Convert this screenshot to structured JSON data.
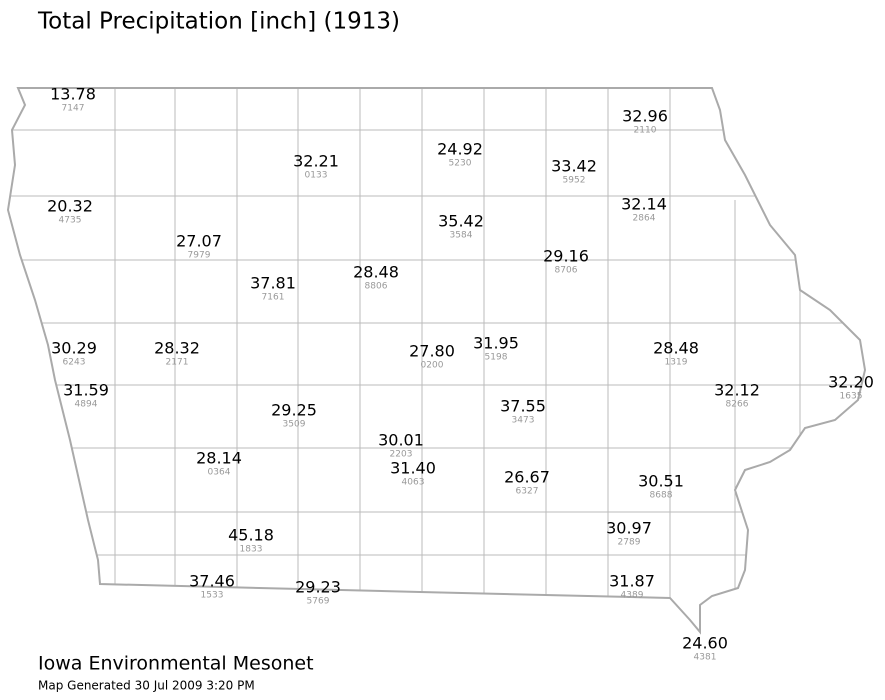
{
  "title": "Total Precipitation [inch] (1913)",
  "stations": [
    {
      "value": "13.78",
      "id": "7147"
    },
    {
      "value": "32.96",
      "id": "2110"
    },
    {
      "value": "32.21",
      "id": "0133"
    },
    {
      "value": "24.92",
      "id": "5230"
    },
    {
      "value": "33.42",
      "id": "5952"
    },
    {
      "value": "20.32",
      "id": "4735"
    },
    {
      "value": "32.14",
      "id": "2864"
    },
    {
      "value": "35.42",
      "id": "3584"
    },
    {
      "value": "27.07",
      "id": "7979"
    },
    {
      "value": "29.16",
      "id": "8706"
    },
    {
      "value": "37.81",
      "id": "7161"
    },
    {
      "value": "28.48",
      "id": "8806"
    },
    {
      "value": "30.29",
      "id": "6243"
    },
    {
      "value": "28.32",
      "id": "2171"
    },
    {
      "value": "27.80",
      "id": "0200"
    },
    {
      "value": "31.95",
      "id": "5198"
    },
    {
      "value": "28.48",
      "id": "1319"
    },
    {
      "value": "32.12",
      "id": "8266"
    },
    {
      "value": "32.20",
      "id": "1635"
    },
    {
      "value": "31.59",
      "id": "4894"
    },
    {
      "value": "29.25",
      "id": "3509"
    },
    {
      "value": "37.55",
      "id": "3473"
    },
    {
      "value": "30.01",
      "id": "2203"
    },
    {
      "value": "28.14",
      "id": "0364"
    },
    {
      "value": "31.40",
      "id": "4063"
    },
    {
      "value": "26.67",
      "id": "6327"
    },
    {
      "value": "30.51",
      "id": "8688"
    },
    {
      "value": "45.18",
      "id": "1833"
    },
    {
      "value": "30.97",
      "id": "2789"
    },
    {
      "value": "37.46",
      "id": "1533"
    },
    {
      "value": "29.23",
      "id": "5769"
    },
    {
      "value": "31.87",
      "id": "4389"
    },
    {
      "value": "24.60",
      "id": "4381"
    }
  ],
  "footer": {
    "org": "Iowa Environmental Mesonet",
    "generated": "Map Generated 30 Jul 2009 3:20 PM"
  }
}
